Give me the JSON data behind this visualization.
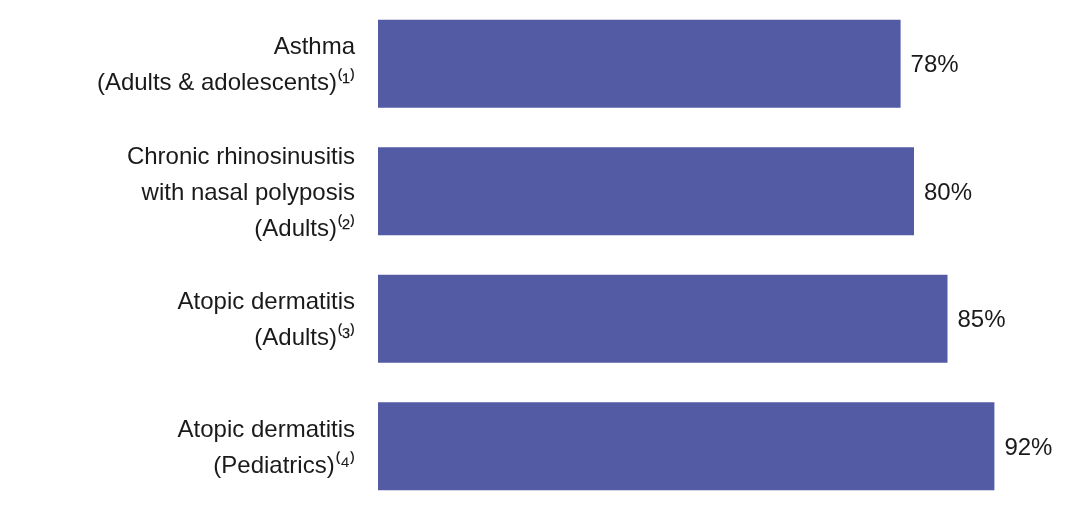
{
  "chart_data": {
    "type": "bar",
    "orientation": "horizontal",
    "categories": [
      "Asthma\n(Adults & adolescents)⁽¹⁾",
      "Chronic rhinosinusitis\nwith nasal polyposis\n(Adults)⁽²⁾",
      "Atopic dermatitis\n(Adults)⁽³⁾",
      "Atopic dermatitis\n(Pediatrics)⁽⁴⁾"
    ],
    "values": [
      78,
      80,
      85,
      92
    ],
    "value_labels": [
      "78%",
      "80%",
      "85%",
      "92%"
    ],
    "color": "#535ba5",
    "tick_labels": "y"
  }
}
